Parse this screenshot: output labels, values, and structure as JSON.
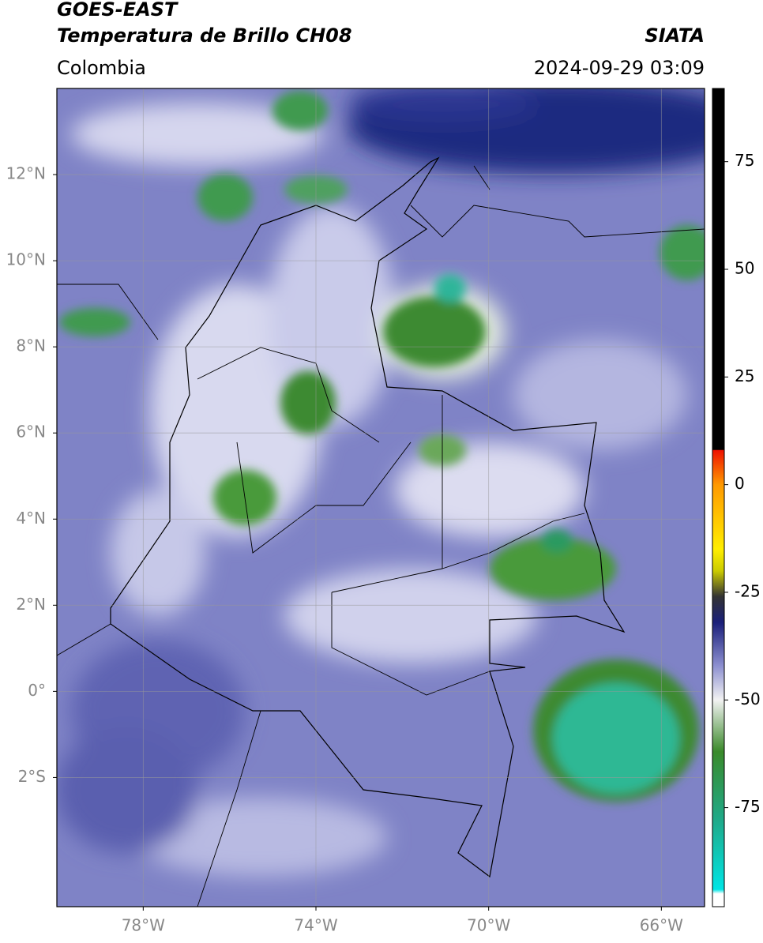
{
  "header": {
    "title_line1": "GOES-EAST",
    "title_line2": "Temperatura de Brillo CH08",
    "source": "SIATA",
    "region": "Colombia",
    "datetime": "2024-09-29 03:09"
  },
  "map": {
    "xlim": [
      -80,
      -65
    ],
    "ylim": [
      -5,
      14
    ],
    "xticks": [
      {
        "value": -78,
        "label": "78°W"
      },
      {
        "value": -74,
        "label": "74°W"
      },
      {
        "value": -70,
        "label": "70°W"
      },
      {
        "value": -66,
        "label": "66°W"
      }
    ],
    "yticks": [
      {
        "value": 12,
        "label": "12°N"
      },
      {
        "value": 10,
        "label": "10°N"
      },
      {
        "value": 8,
        "label": "8°N"
      },
      {
        "value": 6,
        "label": "6°N"
      },
      {
        "value": 4,
        "label": "4°N"
      },
      {
        "value": 2,
        "label": "2°N"
      },
      {
        "value": 0,
        "label": "0°"
      },
      {
        "value": -2,
        "label": "2°S"
      }
    ],
    "grid": true
  },
  "colorbar": {
    "lim": [
      -98,
      92
    ],
    "ticks": [
      75,
      50,
      25,
      0,
      -25,
      -50,
      -75
    ],
    "stops": [
      {
        "value": -98,
        "color": "#ffffff"
      },
      {
        "value": -95,
        "color": "#ffffff"
      },
      {
        "value": -94,
        "color": "#00e5e5"
      },
      {
        "value": -78,
        "color": "#1faa8a"
      },
      {
        "value": -62,
        "color": "#3a8a2a"
      },
      {
        "value": -50,
        "color": "#f2f2f2"
      },
      {
        "value": -42,
        "color": "#8c8fd0"
      },
      {
        "value": -32,
        "color": "#1a1f7a"
      },
      {
        "value": -26,
        "color": "#333333"
      },
      {
        "value": -20,
        "color": "#cccc00"
      },
      {
        "value": -15,
        "color": "#ffee00"
      },
      {
        "value": 0,
        "color": "#ff9900"
      },
      {
        "value": 8,
        "color": "#ee1100"
      },
      {
        "value": 8.1,
        "color": "#000000"
      },
      {
        "value": 92,
        "color": "#000000"
      }
    ]
  }
}
